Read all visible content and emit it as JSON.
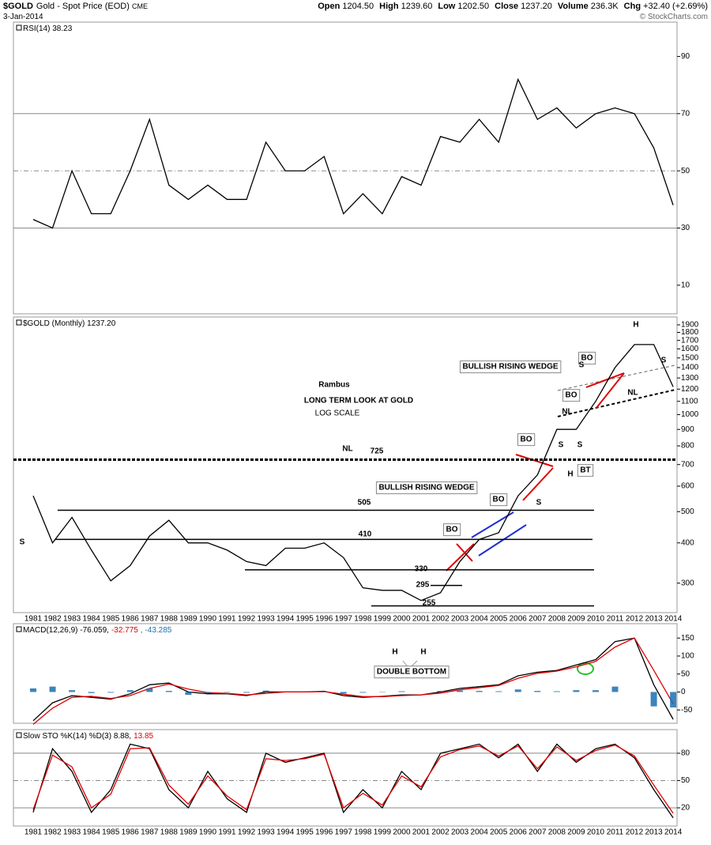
{
  "header": {
    "symbol": "$GOLD",
    "name": "Gold - Spot Price (EOD)",
    "exchange": "CME",
    "date": "3-Jan-2014",
    "fields": [
      {
        "label": "Open",
        "value": "1204.50"
      },
      {
        "label": "High",
        "value": "1239.60"
      },
      {
        "label": "Low",
        "value": "1202.50"
      },
      {
        "label": "Close",
        "value": "1237.20"
      },
      {
        "label": "Volume",
        "value": "236.3K"
      },
      {
        "label": "Chg",
        "value": "+32.40 (+2.69%)"
      }
    ],
    "watermark": "© StockCharts.com"
  },
  "chart_data": [
    {
      "type": "line",
      "title_parts": [
        {
          "text": "RSI(14) 38.23",
          "color": "#000000"
        }
      ],
      "ylim": [
        0,
        102
      ],
      "yticks": [
        10,
        30,
        50,
        70,
        90
      ],
      "gridlines": [
        {
          "value": 70,
          "style": "solid"
        },
        {
          "value": 50,
          "style": "dashdot"
        },
        {
          "value": 30,
          "style": "solid"
        }
      ],
      "series": [
        {
          "name": "RSI(14)",
          "color": "#000000",
          "values": [
            33,
            30,
            50,
            35,
            35,
            50,
            68,
            45,
            40,
            45,
            40,
            40,
            60,
            50,
            50,
            55,
            35,
            42,
            35,
            48,
            45,
            62,
            60,
            68,
            60,
            82,
            68,
            72,
            65,
            70,
            72,
            70,
            58,
            38
          ]
        }
      ]
    },
    {
      "type": "line",
      "title_parts": [
        {
          "text": "$GOLD (Monthly) 1237.20",
          "color": "#000000"
        }
      ],
      "log_scale": true,
      "categories": [
        "1981",
        "1982",
        "1983",
        "1984",
        "1985",
        "1986",
        "1987",
        "1988",
        "1989",
        "1990",
        "1991",
        "1992",
        "1993",
        "1994",
        "1995",
        "1996",
        "1997",
        "1998",
        "1999",
        "2000",
        "2001",
        "2002",
        "2003",
        "2004",
        "2005",
        "2006",
        "2007",
        "2008",
        "2009",
        "2010",
        "2011",
        "2012",
        "2013",
        "2014"
      ],
      "ylim": [
        243,
        2010
      ],
      "yticks": [
        300,
        400,
        500,
        600,
        700,
        800,
        900,
        1000,
        1100,
        1200,
        1300,
        1400,
        1500,
        1600,
        1700,
        1800,
        1900
      ],
      "series": [
        {
          "name": "$GOLD",
          "color": "#000000",
          "values": [
            560,
            400,
            480,
            380,
            305,
            340,
            420,
            470,
            400,
            400,
            380,
            350,
            340,
            385,
            385,
            400,
            360,
            290,
            285,
            285,
            265,
            280,
            350,
            410,
            430,
            560,
            650,
            900,
            900,
            1100,
            1400,
            1650,
            1650,
            1220
          ]
        }
      ],
      "levels": [
        725,
        505,
        410,
        330,
        295,
        255
      ],
      "annotations": [
        "Rambus",
        "LONG TERM LOOK AT GOLD",
        "LOG SCALE",
        "NL",
        "S",
        "S",
        "BULLISH RISING WEDGE",
        "BULLISH RISING WEDGE",
        "BO",
        "BO",
        "BO",
        "BO",
        "BO",
        "BT",
        "S",
        "S",
        "S",
        "H",
        "NL",
        "NL",
        "H",
        "S"
      ]
    },
    {
      "type": "line",
      "title_parts": [
        {
          "text": "MACD(12,26,9) -76.059,",
          "color": "#000000"
        },
        {
          "text": "-32.775",
          "color": "#e00000"
        },
        {
          "text": ", -43.285",
          "color": "#1a6fb0"
        }
      ],
      "ylim": [
        -87,
        190
      ],
      "yticks": [
        -50,
        0,
        50,
        100,
        150
      ],
      "series": [
        {
          "name": "MACD",
          "color": "#000000",
          "values": [
            -80,
            -30,
            -10,
            -15,
            -20,
            -5,
            20,
            25,
            0,
            -5,
            -5,
            -10,
            0,
            0,
            0,
            2,
            -10,
            -15,
            -12,
            -8,
            -8,
            0,
            10,
            15,
            20,
            45,
            55,
            60,
            75,
            90,
            140,
            150,
            20,
            -76
          ]
        },
        {
          "name": "Signal",
          "color": "#e00000",
          "values": [
            -90,
            -45,
            -15,
            -12,
            -18,
            -10,
            10,
            22,
            8,
            -2,
            -4,
            -8,
            -4,
            0,
            0,
            1,
            -6,
            -13,
            -13,
            -10,
            -8,
            -3,
            6,
            12,
            18,
            38,
            52,
            58,
            70,
            85,
            125,
            150,
            60,
            -33
          ]
        },
        {
          "name": "Histogram",
          "kind": "bar",
          "color": "#1a6fb0",
          "values": [
            10,
            15,
            5,
            -3,
            -2,
            5,
            10,
            3,
            -8,
            -3,
            -1,
            -2,
            4,
            0,
            0,
            1,
            -4,
            -2,
            1,
            2,
            0,
            3,
            4,
            3,
            2,
            7,
            3,
            2,
            5,
            5,
            15,
            0,
            -40,
            -43
          ]
        }
      ],
      "annotations": [
        "H",
        "H",
        "DOUBLE BOTTOM"
      ]
    },
    {
      "type": "line",
      "title_parts": [
        {
          "text": "Slow STO %K(14) %D(3) 8.88,",
          "color": "#000000"
        },
        {
          "text": "13.85",
          "color": "#e00000"
        }
      ],
      "categories": [
        "1981",
        "1982",
        "1983",
        "1984",
        "1985",
        "1986",
        "1987",
        "1988",
        "1989",
        "1990",
        "1991",
        "1992",
        "1993",
        "1994",
        "1995",
        "1996",
        "1997",
        "1998",
        "1999",
        "2000",
        "2001",
        "2002",
        "2003",
        "2004",
        "2005",
        "2006",
        "2007",
        "2008",
        "2009",
        "2010",
        "2011",
        "2012",
        "2013",
        "2014"
      ],
      "ylim": [
        0,
        106
      ],
      "yticks": [
        20,
        50,
        80
      ],
      "gridlines": [
        {
          "value": 80,
          "style": "solid"
        },
        {
          "value": 50,
          "style": "dashdot"
        },
        {
          "value": 20,
          "style": "solid"
        }
      ],
      "series": [
        {
          "name": "%K",
          "color": "#000000",
          "values": [
            15,
            85,
            60,
            15,
            40,
            90,
            85,
            40,
            20,
            60,
            30,
            15,
            80,
            70,
            75,
            80,
            15,
            40,
            20,
            60,
            40,
            80,
            85,
            90,
            75,
            90,
            60,
            90,
            70,
            85,
            90,
            75,
            40,
            9
          ]
        },
        {
          "name": "%D",
          "color": "#e00000",
          "values": [
            18,
            78,
            65,
            20,
            35,
            85,
            86,
            45,
            24,
            55,
            33,
            18,
            74,
            72,
            74,
            79,
            20,
            36,
            23,
            55,
            43,
            76,
            84,
            88,
            77,
            88,
            63,
            87,
            72,
            83,
            89,
            77,
            45,
            14
          ]
        }
      ]
    }
  ]
}
